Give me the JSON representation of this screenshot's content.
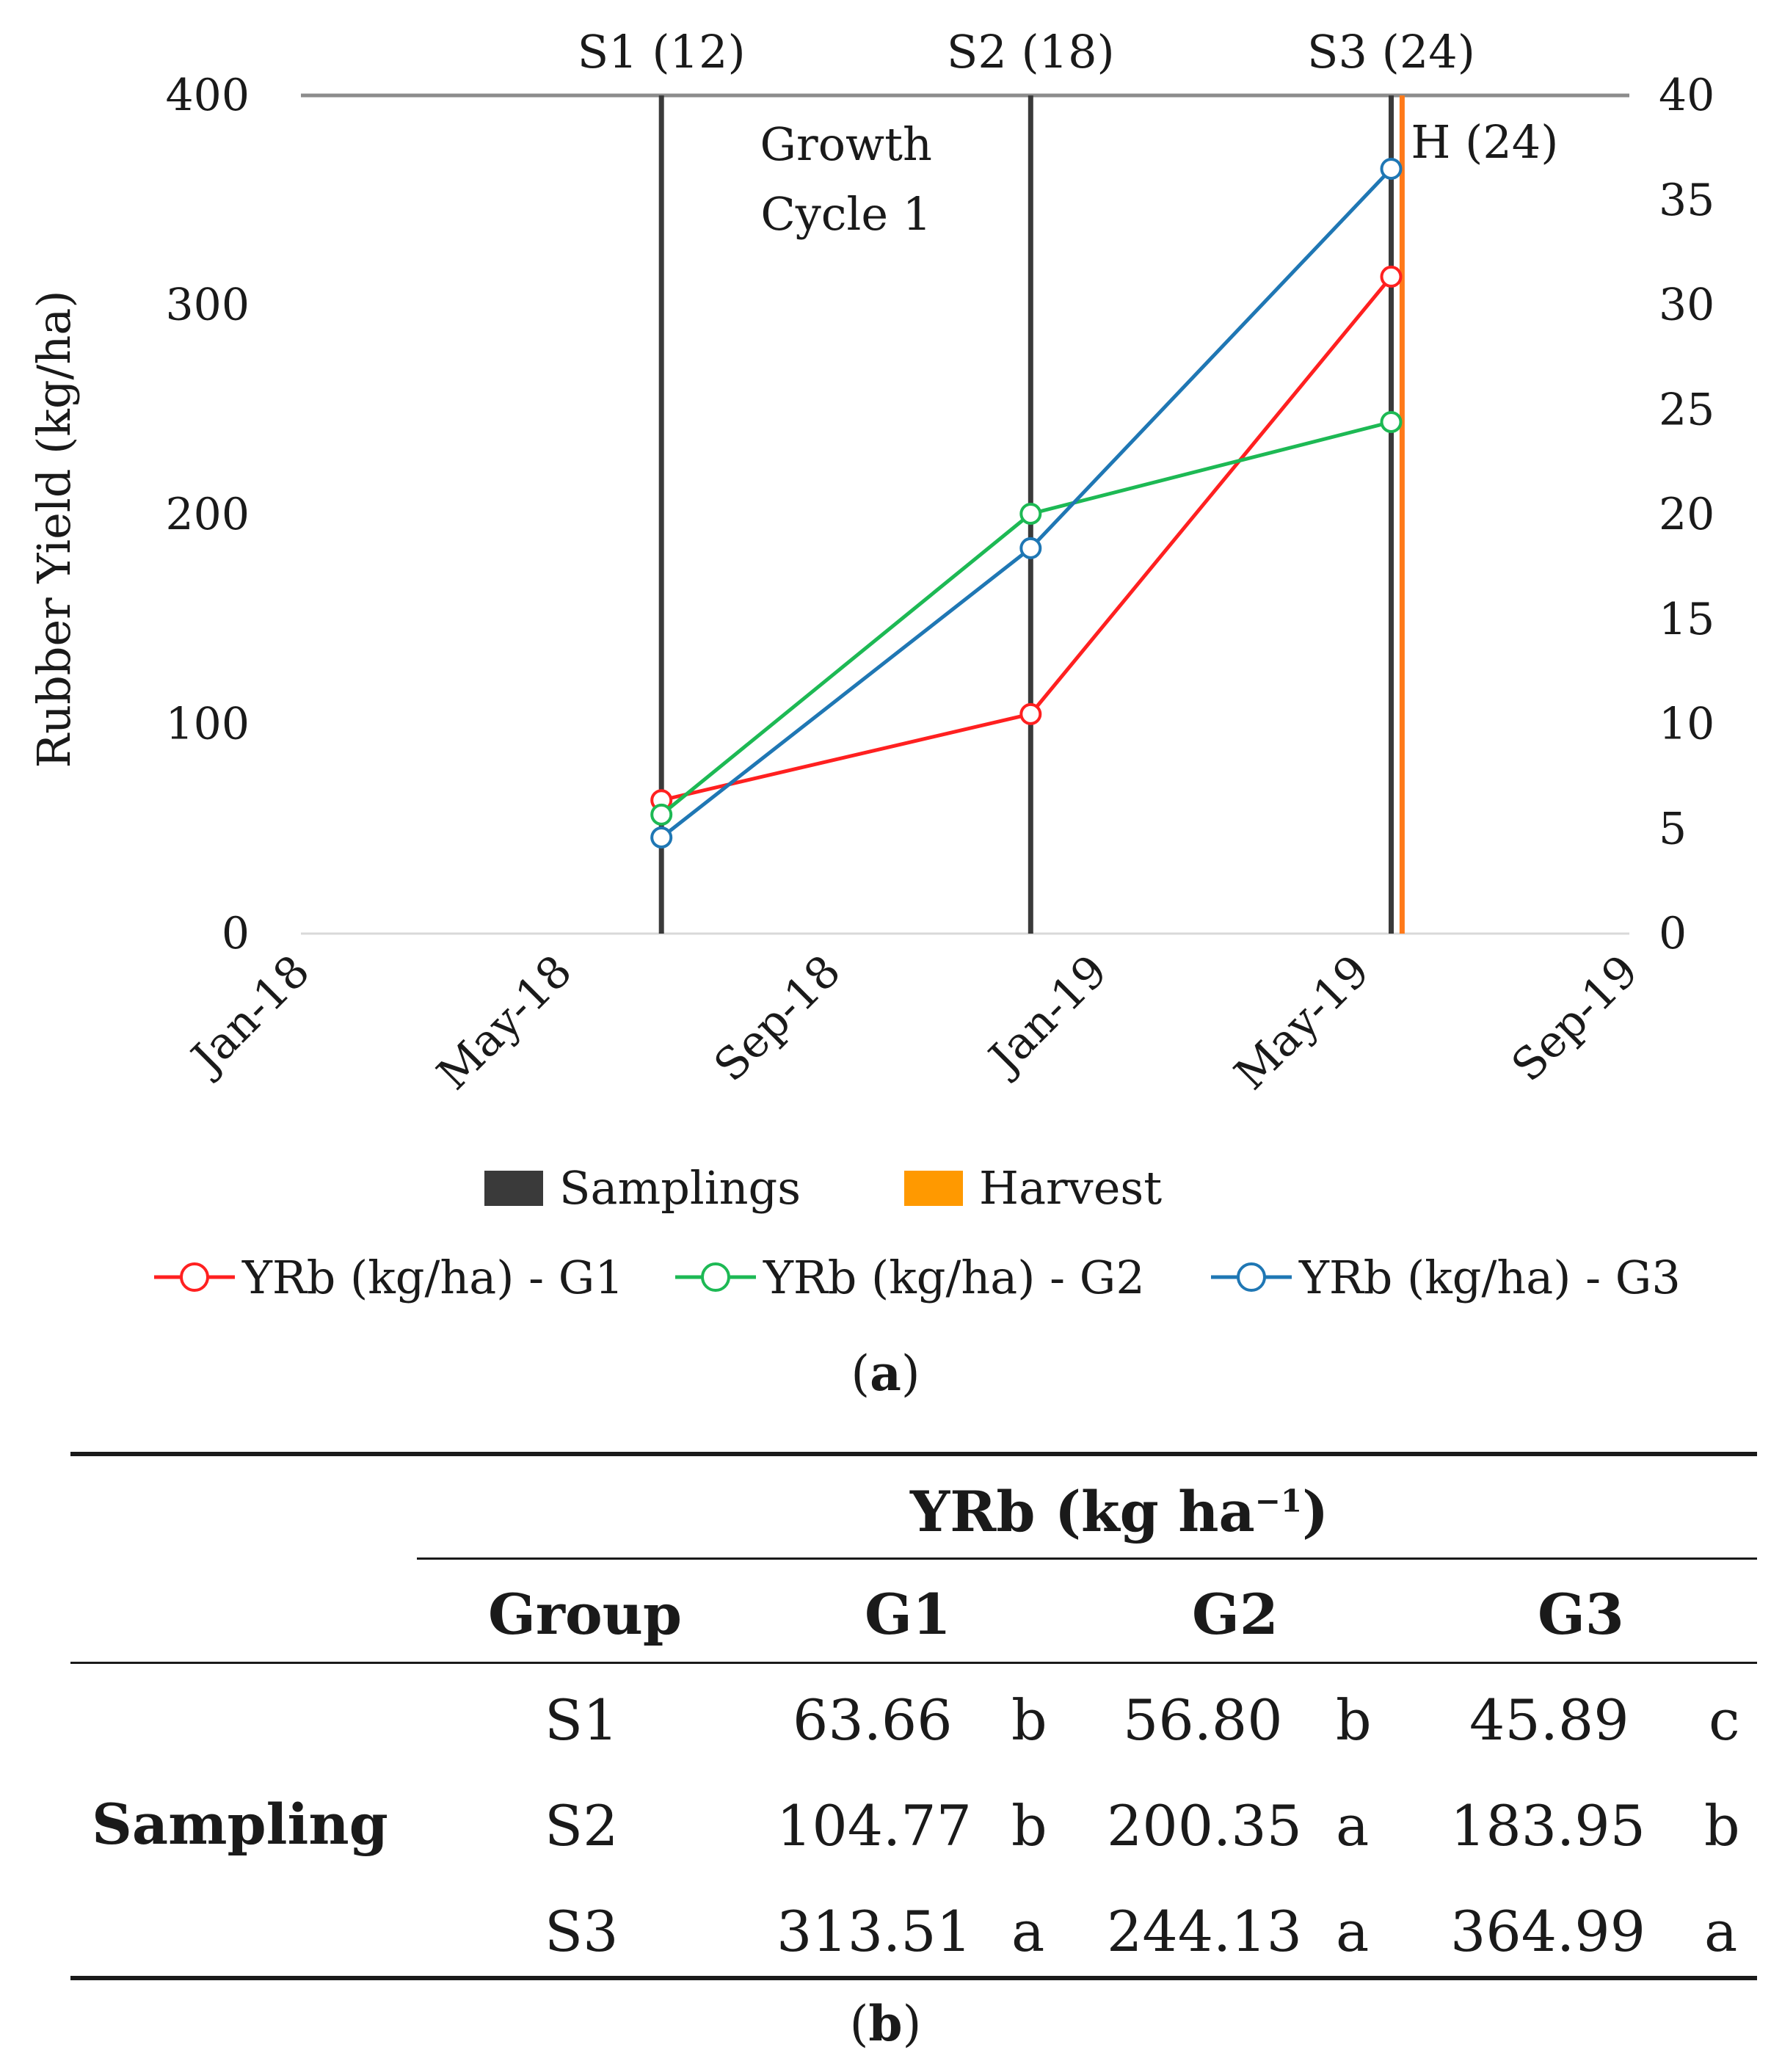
{
  "chart_data": {
    "type": "line",
    "x_ticks": [
      "Jan-18",
      "May-18",
      "Sep-18",
      "Jan-19",
      "May-19",
      "Sep-19"
    ],
    "x_range": [
      "2018-01-01",
      "2019-09-01"
    ],
    "y_left": {
      "label": "Rubber Yield (kg/ha)",
      "ticks": [
        0,
        100,
        200,
        300,
        400
      ],
      "range": [
        0,
        400
      ]
    },
    "y_right": {
      "ticks": [
        0,
        5,
        10,
        15,
        20,
        25,
        30,
        35,
        40
      ],
      "range": [
        0,
        40
      ]
    },
    "samplings": [
      {
        "label": "S1 (12)",
        "date": "2018-06-15"
      },
      {
        "label": "S2 (18)",
        "date": "2018-12-01"
      },
      {
        "label": "S3 (24)",
        "date": "2019-05-15"
      }
    ],
    "harvest": {
      "label": "H (24)",
      "date": "2019-05-20"
    },
    "annotation": [
      "Growth",
      "Cycle 1"
    ],
    "series": [
      {
        "name": "YRb (kg/ha) - G1",
        "color": "#ff2020",
        "values": [
          63.66,
          104.77,
          313.51
        ]
      },
      {
        "name": "YRb (kg/ha) - G2",
        "color": "#1db954",
        "values": [
          56.8,
          200.35,
          244.13
        ]
      },
      {
        "name": "YRb (kg/ha) - G3",
        "color": "#1f77b4",
        "values": [
          45.89,
          183.95,
          364.99
        ]
      }
    ],
    "legend": {
      "samplings": {
        "label": "Samplings",
        "color": "#3a3a3a"
      },
      "harvest": {
        "label": "Harvest",
        "color": "#ff9900"
      }
    }
  },
  "captions": {
    "a": "a",
    "b": "b"
  },
  "table": {
    "header": {
      "title": "YRb (kg ha",
      "title_sup": "−1",
      "title_end": ")"
    },
    "columns": [
      "Group",
      "G1",
      "G2",
      "G3"
    ],
    "row_group_label": "Sampling",
    "rows": [
      {
        "sampling": "S1",
        "g1": "63.66",
        "g1_sig": "b",
        "g2": "56.80",
        "g2_sig": "b",
        "g3": "45.89",
        "g3_sig": "c"
      },
      {
        "sampling": "S2",
        "g1": "104.77",
        "g1_sig": "b",
        "g2": "200.35",
        "g2_sig": "a",
        "g3": "183.95",
        "g3_sig": "b"
      },
      {
        "sampling": "S3",
        "g1": "313.51",
        "g1_sig": "a",
        "g2": "244.13",
        "g2_sig": "a",
        "g3": "364.99",
        "g3_sig": "a"
      }
    ]
  }
}
